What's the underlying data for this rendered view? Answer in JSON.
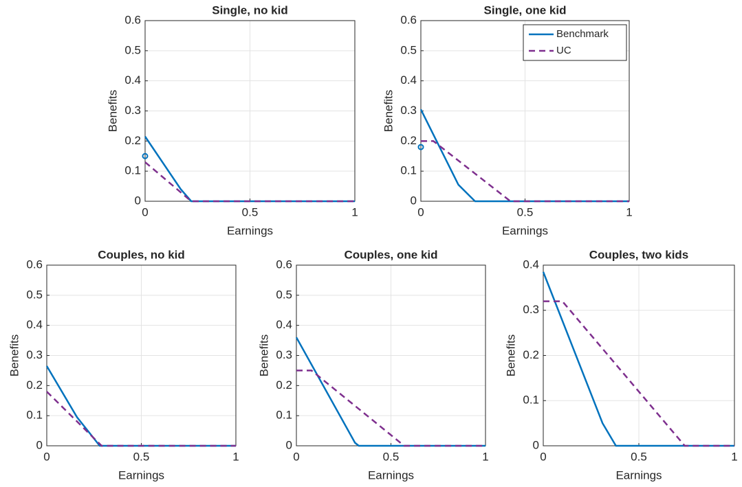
{
  "chart_data": [
    {
      "type": "line",
      "title": "Single, no kid",
      "xlabel": "Earnings",
      "ylabel": "Benefits",
      "xlim": [
        0,
        1
      ],
      "xticks": [
        0,
        0.5,
        1
      ],
      "ylim": [
        0,
        0.6
      ],
      "yticks": [
        0,
        0.1,
        0.2,
        0.3,
        0.4,
        0.5,
        0.6
      ],
      "grid": true,
      "series": [
        {
          "color": "#0072bd",
          "dash": false,
          "x": [
            0,
            0.17,
            0.22,
            1
          ],
          "values": [
            0.215,
            0.04,
            0,
            0
          ]
        },
        {
          "color": "#7e2f8e",
          "dash": true,
          "x": [
            0,
            0.22,
            1
          ],
          "values": [
            0.13,
            0,
            0
          ]
        }
      ],
      "markers": [
        {
          "x": 0,
          "y": 0.15,
          "color": "#0072bd"
        }
      ]
    },
    {
      "type": "line",
      "title": "Single, one kid",
      "xlabel": "Earnings",
      "ylabel": "Benefits",
      "xlim": [
        0,
        1
      ],
      "xticks": [
        0,
        0.5,
        1
      ],
      "ylim": [
        0,
        0.6
      ],
      "yticks": [
        0,
        0.1,
        0.2,
        0.3,
        0.4,
        0.5,
        0.6
      ],
      "grid": true,
      "legend": "northeast",
      "series": [
        {
          "name": "Benchmark",
          "color": "#0072bd",
          "dash": false,
          "x": [
            0,
            0.18,
            0.26,
            1
          ],
          "values": [
            0.305,
            0.055,
            0,
            0
          ]
        },
        {
          "name": "UC",
          "color": "#7e2f8e",
          "dash": true,
          "x": [
            0,
            0.06,
            0.43,
            1
          ],
          "values": [
            0.2,
            0.2,
            0,
            0
          ]
        }
      ],
      "markers": [
        {
          "x": 0,
          "y": 0.18,
          "color": "#0072bd"
        }
      ]
    },
    {
      "type": "line",
      "title": "Couples, no kid",
      "xlabel": "Earnings",
      "ylabel": "Benefits",
      "xlim": [
        0,
        1
      ],
      "xticks": [
        0,
        0.5,
        1
      ],
      "ylim": [
        0,
        0.6
      ],
      "yticks": [
        0,
        0.1,
        0.2,
        0.3,
        0.4,
        0.5,
        0.6
      ],
      "grid": true,
      "series": [
        {
          "color": "#0072bd",
          "dash": false,
          "x": [
            0,
            0.16,
            0.28,
            1
          ],
          "values": [
            0.265,
            0.095,
            0,
            0
          ]
        },
        {
          "color": "#7e2f8e",
          "dash": true,
          "x": [
            0,
            0.29,
            1
          ],
          "values": [
            0.18,
            0,
            0
          ]
        }
      ]
    },
    {
      "type": "line",
      "title": "Couples, one kid",
      "xlabel": "Earnings",
      "ylabel": "Benefits",
      "xlim": [
        0,
        1
      ],
      "xticks": [
        0,
        0.5,
        1
      ],
      "ylim": [
        0,
        0.6
      ],
      "yticks": [
        0,
        0.1,
        0.2,
        0.3,
        0.4,
        0.5,
        0.6
      ],
      "grid": true,
      "series": [
        {
          "color": "#0072bd",
          "dash": false,
          "x": [
            0,
            0.31,
            0.33,
            1
          ],
          "values": [
            0.36,
            0.01,
            0,
            0
          ]
        },
        {
          "color": "#7e2f8e",
          "dash": true,
          "x": [
            0,
            0.08,
            0.57,
            1
          ],
          "values": [
            0.25,
            0.25,
            0,
            0
          ]
        }
      ]
    },
    {
      "type": "line",
      "title": "Couples, two kids",
      "xlabel": "Earnings",
      "ylabel": "Benefits",
      "xlim": [
        0,
        1
      ],
      "xticks": [
        0,
        0.5,
        1
      ],
      "ylim": [
        0,
        0.4
      ],
      "yticks": [
        0,
        0.1,
        0.2,
        0.3,
        0.4
      ],
      "grid": true,
      "series": [
        {
          "color": "#0072bd",
          "dash": false,
          "x": [
            0,
            0.31,
            0.38,
            1
          ],
          "values": [
            0.385,
            0.05,
            0,
            0
          ]
        },
        {
          "color": "#7e2f8e",
          "dash": true,
          "x": [
            0,
            0.1,
            0.74,
            1
          ],
          "values": [
            0.32,
            0.32,
            0,
            0
          ]
        }
      ]
    }
  ]
}
